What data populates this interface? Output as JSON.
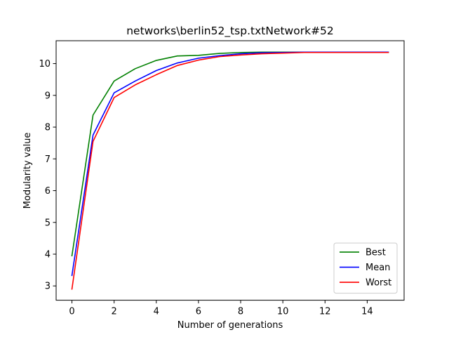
{
  "chart_data": {
    "type": "line",
    "title": "networks\\berlin52_tsp.txtNetwork#52",
    "xlabel": "Number of generations",
    "ylabel": "Modularity value",
    "xlim": [
      -0.75,
      15.75
    ],
    "ylim": [
      2.55,
      10.72
    ],
    "xticks": [
      0,
      2,
      4,
      6,
      8,
      10,
      12,
      14
    ],
    "yticks": [
      3,
      4,
      5,
      6,
      7,
      8,
      9,
      10
    ],
    "x": [
      0,
      1,
      2,
      3,
      4,
      5,
      6,
      7,
      8,
      9,
      10,
      11,
      12,
      13,
      14,
      15
    ],
    "grid": false,
    "legend_position": "lower-right",
    "series": [
      {
        "name": "Best",
        "color": "#008000",
        "values": [
          3.95,
          8.38,
          9.45,
          9.84,
          10.1,
          10.24,
          10.26,
          10.32,
          10.35,
          10.36,
          10.36,
          10.36,
          10.36,
          10.36,
          10.36,
          10.36
        ]
      },
      {
        "name": "Mean",
        "color": "#0000ff",
        "values": [
          3.33,
          7.75,
          9.08,
          9.45,
          9.78,
          10.02,
          10.17,
          10.25,
          10.31,
          10.34,
          10.35,
          10.36,
          10.36,
          10.36,
          10.36,
          10.36
        ]
      },
      {
        "name": "Worst",
        "color": "#ff0000",
        "values": [
          2.9,
          7.55,
          8.93,
          9.33,
          9.65,
          9.94,
          10.11,
          10.22,
          10.27,
          10.31,
          10.33,
          10.35,
          10.35,
          10.35,
          10.35,
          10.35
        ]
      }
    ]
  }
}
